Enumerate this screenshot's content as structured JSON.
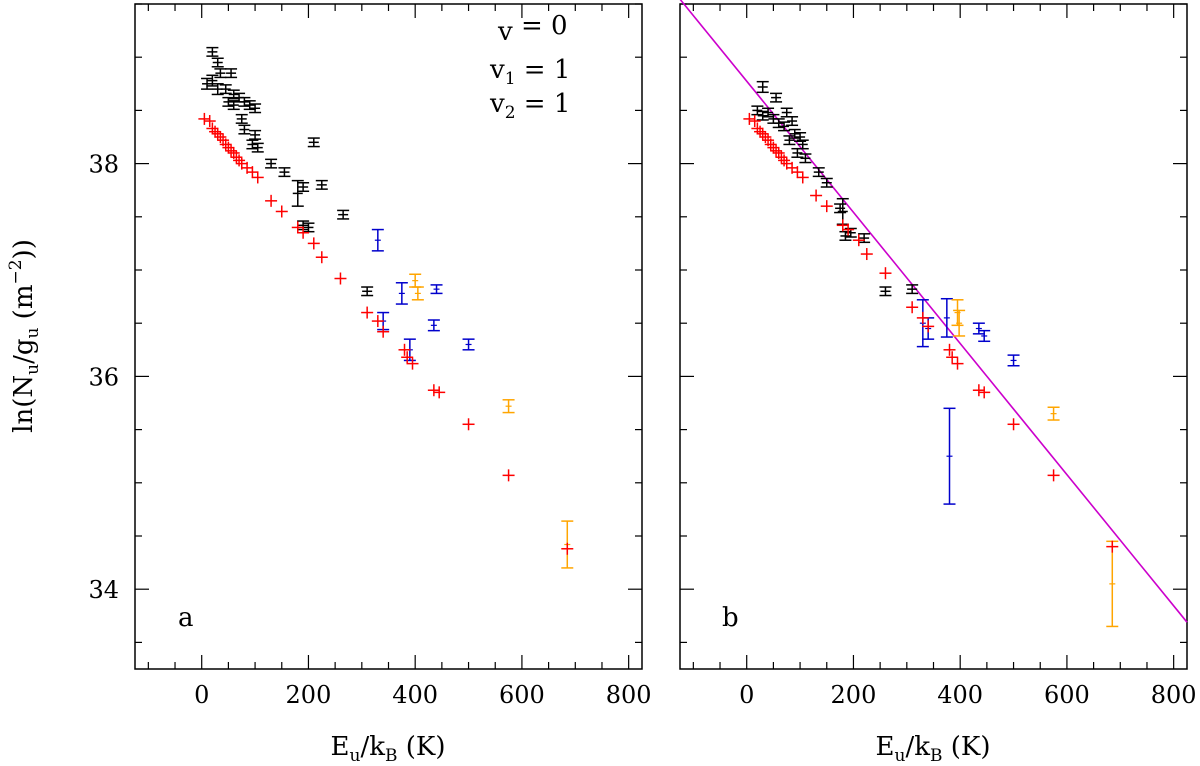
{
  "colors": {
    "v0": "#000000",
    "v1": "#0000cc",
    "v2": "#ffa500",
    "model": "#ff0000",
    "fit": "#cc00cc"
  },
  "legend": {
    "v0": {
      "base": "v",
      "sub": "",
      "rest": " = 0"
    },
    "v1": {
      "base": "v",
      "sub": "1",
      "rest": " = 1"
    },
    "v2": {
      "base": "v",
      "sub": "2",
      "rest": " = 1"
    }
  },
  "axis_text": {
    "y_prefix": "ln(N",
    "y_sub1": "u",
    "y_mid": "/g",
    "y_sub2": "u",
    "y_open": " (m",
    "y_sup": "−2",
    "y_close": "))",
    "x_prefix": "E",
    "x_sub1": "u",
    "x_mid": "/k",
    "x_sub2": "B",
    "x_rest": " (K)"
  },
  "chart_data": [
    {
      "type": "scatter",
      "panel": "a",
      "xlim": [
        -125,
        825
      ],
      "ylim": [
        33.25,
        39.5
      ],
      "xticks": [
        0,
        200,
        400,
        600,
        800
      ],
      "xtick_labels": [
        "0",
        "200",
        "400",
        "600",
        "800"
      ],
      "yticks": [
        34,
        36,
        38
      ],
      "ytick_labels": [
        "34",
        "36",
        "38"
      ],
      "series": [
        {
          "name": "v = 0",
          "color_key": "v0",
          "style": "errorbar-cross",
          "points": [
            [
              20,
              39.05,
              0.04
            ],
            [
              30,
              38.95,
              0.04
            ],
            [
              35,
              38.85,
              0.04
            ],
            [
              55,
              38.85,
              0.04
            ],
            [
              10,
              38.75,
              0.05
            ],
            [
              20,
              38.78,
              0.05
            ],
            [
              30,
              38.7,
              0.05
            ],
            [
              45,
              38.7,
              0.04
            ],
            [
              60,
              38.65,
              0.04
            ],
            [
              70,
              38.62,
              0.04
            ],
            [
              50,
              38.58,
              0.04
            ],
            [
              60,
              38.55,
              0.04
            ],
            [
              80,
              38.58,
              0.04
            ],
            [
              90,
              38.55,
              0.04
            ],
            [
              100,
              38.52,
              0.04
            ],
            [
              75,
              38.42,
              0.04
            ],
            [
              80,
              38.32,
              0.04
            ],
            [
              100,
              38.27,
              0.04
            ],
            [
              95,
              38.18,
              0.04
            ],
            [
              105,
              38.15,
              0.04
            ],
            [
              210,
              38.2,
              0.04
            ],
            [
              130,
              38.0,
              0.04
            ],
            [
              155,
              37.92,
              0.04
            ],
            [
              190,
              37.78,
              0.04
            ],
            [
              180,
              37.72,
              0.12
            ],
            [
              225,
              37.8,
              0.04
            ],
            [
              190,
              37.42,
              0.04
            ],
            [
              200,
              37.4,
              0.04
            ],
            [
              265,
              37.52,
              0.04
            ],
            [
              310,
              36.8,
              0.04
            ]
          ]
        },
        {
          "name": "v1 = 1",
          "color_key": "v1",
          "style": "errorbar",
          "points": [
            [
              330,
              37.28,
              0.1
            ],
            [
              340,
              36.52,
              0.08
            ],
            [
              375,
              36.78,
              0.1
            ],
            [
              390,
              36.25,
              0.1
            ],
            [
              440,
              36.82,
              0.04
            ],
            [
              435,
              36.48,
              0.05
            ],
            [
              500,
              36.3,
              0.05
            ]
          ]
        },
        {
          "name": "v2 = 1",
          "color_key": "v2",
          "style": "errorbar",
          "points": [
            [
              400,
              36.9,
              0.06
            ],
            [
              405,
              36.78,
              0.06
            ],
            [
              575,
              35.72,
              0.06
            ],
            [
              685,
              34.42,
              0.22
            ]
          ]
        },
        {
          "name": "model",
          "color_key": "model",
          "style": "cross",
          "points": [
            [
              5,
              38.42
            ],
            [
              15,
              38.4
            ],
            [
              20,
              38.33
            ],
            [
              25,
              38.3
            ],
            [
              30,
              38.28
            ],
            [
              35,
              38.25
            ],
            [
              40,
              38.22
            ],
            [
              45,
              38.18
            ],
            [
              50,
              38.15
            ],
            [
              55,
              38.12
            ],
            [
              60,
              38.1
            ],
            [
              65,
              38.06
            ],
            [
              70,
              38.03
            ],
            [
              75,
              38.0
            ],
            [
              85,
              37.96
            ],
            [
              95,
              37.92
            ],
            [
              105,
              37.87
            ],
            [
              130,
              37.65
            ],
            [
              150,
              37.55
            ],
            [
              180,
              37.4
            ],
            [
              190,
              37.35
            ],
            [
              210,
              37.25
            ],
            [
              225,
              37.12
            ],
            [
              260,
              36.92
            ],
            [
              310,
              36.6
            ],
            [
              330,
              36.52
            ],
            [
              340,
              36.42
            ],
            [
              380,
              36.25
            ],
            [
              385,
              36.18
            ],
            [
              395,
              36.12
            ],
            [
              435,
              35.87
            ],
            [
              445,
              35.85
            ],
            [
              500,
              35.55
            ],
            [
              575,
              35.07
            ],
            [
              685,
              34.38
            ]
          ]
        }
      ],
      "legend_position": "top-right"
    },
    {
      "type": "scatter",
      "panel": "b",
      "xlim": [
        -125,
        825
      ],
      "ylim": [
        33.25,
        39.5
      ],
      "xticks": [
        0,
        200,
        400,
        600,
        800
      ],
      "xtick_labels": [
        "0",
        "200",
        "400",
        "600",
        "800"
      ],
      "yticks": [
        34,
        36,
        38
      ],
      "ytick_labels": [
        "34",
        "36",
        "38"
      ],
      "series": [
        {
          "name": "v = 0",
          "color_key": "v0",
          "style": "errorbar-cross",
          "points": [
            [
              30,
              38.72,
              0.05
            ],
            [
              55,
              38.62,
              0.04
            ],
            [
              20,
              38.5,
              0.04
            ],
            [
              30,
              38.45,
              0.04
            ],
            [
              40,
              38.48,
              0.04
            ],
            [
              50,
              38.42,
              0.04
            ],
            [
              60,
              38.38,
              0.04
            ],
            [
              70,
              38.35,
              0.04
            ],
            [
              75,
              38.48,
              0.04
            ],
            [
              85,
              38.4,
              0.04
            ],
            [
              90,
              38.28,
              0.04
            ],
            [
              100,
              38.25,
              0.04
            ],
            [
              105,
              38.18,
              0.04
            ],
            [
              80,
              38.22,
              0.04
            ],
            [
              95,
              38.1,
              0.04
            ],
            [
              110,
              38.05,
              0.04
            ],
            [
              135,
              37.92,
              0.04
            ],
            [
              150,
              37.82,
              0.04
            ],
            [
              175,
              37.58,
              0.04
            ],
            [
              180,
              37.55,
              0.12
            ],
            [
              185,
              37.32,
              0.04
            ],
            [
              195,
              37.35,
              0.04
            ],
            [
              220,
              37.3,
              0.04
            ],
            [
              310,
              36.82,
              0.04
            ],
            [
              260,
              36.8,
              0.04
            ]
          ]
        },
        {
          "name": "v1 = 1",
          "color_key": "v1",
          "style": "errorbar",
          "points": [
            [
              330,
              36.5,
              0.22
            ],
            [
              340,
              36.45,
              0.1
            ],
            [
              375,
              36.55,
              0.18
            ],
            [
              380,
              35.25,
              0.45
            ],
            [
              435,
              36.45,
              0.05
            ],
            [
              445,
              36.38,
              0.05
            ],
            [
              500,
              36.15,
              0.05
            ]
          ]
        },
        {
          "name": "v2 = 1",
          "color_key": "v2",
          "style": "errorbar",
          "points": [
            [
              395,
              36.6,
              0.12
            ],
            [
              398,
              36.5,
              0.12
            ],
            [
              575,
              35.65,
              0.06
            ],
            [
              685,
              34.05,
              0.4
            ]
          ]
        },
        {
          "name": "model",
          "color_key": "model",
          "style": "cross",
          "points": [
            [
              5,
              38.42
            ],
            [
              15,
              38.4
            ],
            [
              20,
              38.33
            ],
            [
              25,
              38.3
            ],
            [
              30,
              38.28
            ],
            [
              35,
              38.25
            ],
            [
              40,
              38.22
            ],
            [
              45,
              38.18
            ],
            [
              50,
              38.15
            ],
            [
              55,
              38.12
            ],
            [
              60,
              38.1
            ],
            [
              65,
              38.06
            ],
            [
              70,
              38.03
            ],
            [
              75,
              38.0
            ],
            [
              85,
              37.96
            ],
            [
              95,
              37.92
            ],
            [
              105,
              37.87
            ],
            [
              130,
              37.7
            ],
            [
              150,
              37.6
            ],
            [
              180,
              37.42
            ],
            [
              190,
              37.38
            ],
            [
              210,
              37.28
            ],
            [
              225,
              37.15
            ],
            [
              260,
              36.97
            ],
            [
              310,
              36.65
            ],
            [
              330,
              36.55
            ],
            [
              340,
              36.47
            ],
            [
              380,
              36.25
            ],
            [
              385,
              36.18
            ],
            [
              395,
              36.12
            ],
            [
              435,
              35.87
            ],
            [
              445,
              35.85
            ],
            [
              500,
              35.55
            ],
            [
              575,
              35.07
            ],
            [
              685,
              34.4
            ]
          ]
        }
      ],
      "fit_line": {
        "color_key": "fit",
        "x": [
          -125,
          825
        ],
        "y": [
          39.545,
          33.69
        ]
      }
    }
  ]
}
